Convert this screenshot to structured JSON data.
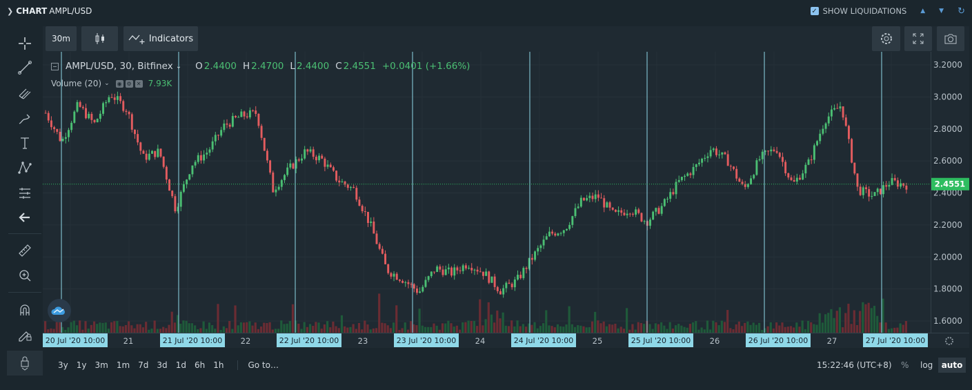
{
  "header": {
    "title_prefix": "CHART",
    "title_pair": "AMPL/USD",
    "show_liquidations_label": "SHOW LIQUIDATIONS",
    "show_liquidations_checked": true
  },
  "toolbar": {
    "interval_label": "30m",
    "indicators_label": "Indicators"
  },
  "legend": {
    "symbol": "AMPL/USD, 30, Bitfinex",
    "open_label": "O",
    "open": "2.4400",
    "high_label": "H",
    "high": "2.4700",
    "low_label": "L",
    "low": "2.4400",
    "close_label": "C",
    "close": "2.4551",
    "change": "+0.0401 (+1.66%)",
    "volume_label": "Volume (20)",
    "volume_value": "7.93K"
  },
  "price_axis": {
    "labels": [
      "3.2000",
      "3.0000",
      "2.8000",
      "2.6000",
      "2.4000",
      "2.2000",
      "2.0000",
      "1.8000",
      "1.6000"
    ],
    "last_price": "2.4551"
  },
  "time_axis": {
    "highlighted": [
      "20 Jul '20   10:00",
      "21 Jul '20   10:00",
      "22 Jul '20   10:00",
      "23 Jul '20   10:00",
      "24 Jul '20   10:00",
      "25 Jul '20   10:00",
      "26 Jul '20   10:00",
      "27 Jul '20   10:00"
    ],
    "days": [
      "21",
      "22",
      "23",
      "24",
      "25",
      "26",
      "27"
    ]
  },
  "bottom": {
    "ranges": [
      "3y",
      "1y",
      "3m",
      "1m",
      "7d",
      "3d",
      "1d",
      "6h",
      "1h"
    ],
    "goto_label": "Go to…",
    "clock": "15:22:46 (UTC+8)",
    "percent_label": "%",
    "log_label": "log",
    "auto_label": "auto"
  },
  "colors": {
    "up": "#4bbf73",
    "down": "#e35c5f",
    "marker_line": "#8fd8e8",
    "last_price": "#2ebd60"
  },
  "chart_data": {
    "type": "candlestick",
    "title": "AMPL/USD, 30, Bitfinex",
    "ylim": [
      1.55,
      3.25
    ],
    "xlabel": "",
    "ylabel": "",
    "series": [
      {
        "name": "AMPL/USD",
        "close_anchors": [
          2.9,
          2.72,
          2.95,
          2.83,
          3.02,
          2.92,
          2.62,
          2.66,
          2.3,
          2.58,
          2.66,
          2.82,
          2.88,
          2.9,
          2.42,
          2.55,
          2.66,
          2.61,
          2.48,
          2.42,
          2.2,
          1.92,
          1.86,
          1.78,
          1.93,
          1.9,
          1.96,
          1.9,
          1.79,
          1.85,
          2.0,
          2.14,
          2.18,
          2.35,
          2.38,
          2.26,
          2.3,
          2.22,
          2.32,
          2.47,
          2.56,
          2.68,
          2.6,
          2.42,
          2.62,
          2.68,
          2.45,
          2.59,
          2.86,
          2.95,
          2.42,
          2.38,
          2.47,
          2.45
        ]
      }
    ]
  }
}
